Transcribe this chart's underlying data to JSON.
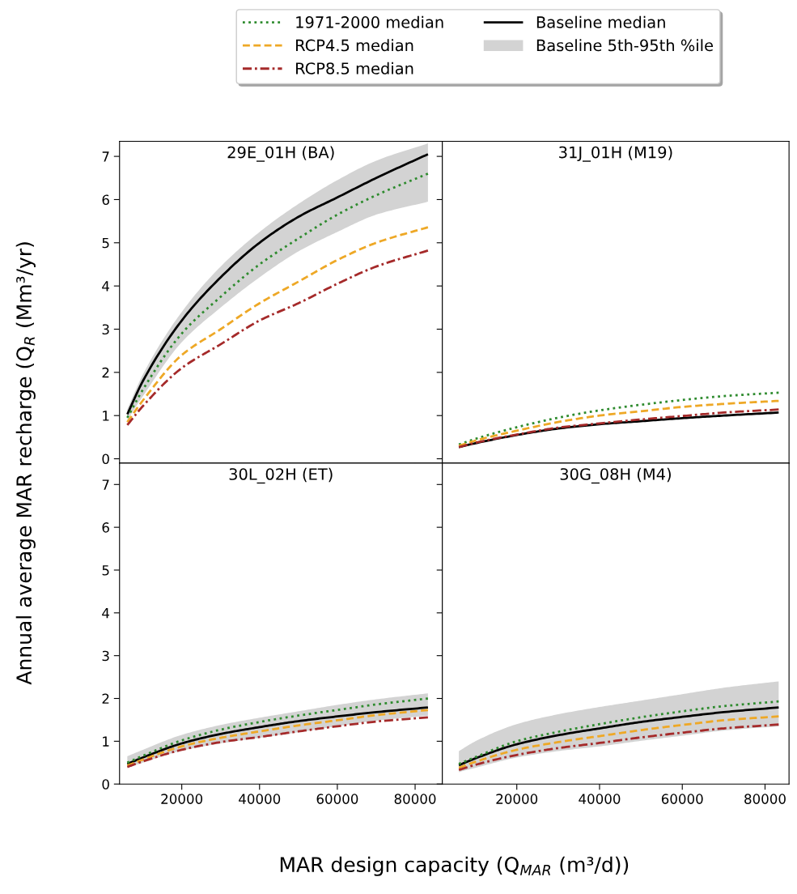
{
  "chart_data": [
    {
      "type": "line",
      "title": "29E_01H (BA)",
      "ylabel": "Annual average MAR recharge (Q$_{R}$ (Mm³/yr)",
      "legend": "top",
      "tick_labels": "y",
      "grid": false,
      "annotations": [
        "Baseline 5th-95th %ile"
      ],
      "x": [
        6000,
        10000,
        20000,
        30000,
        40000,
        50000,
        60000,
        70000,
        83300
      ],
      "xlim": [
        4000,
        87000
      ],
      "xticks": [
        20000,
        40000,
        60000,
        80000
      ],
      "ylim": [
        -0.1,
        7.35
      ],
      "yticks": [
        0,
        1,
        2,
        3,
        4,
        5,
        6,
        7
      ],
      "series": [
        {
          "name": "1971-2000 median",
          "color": "#2e8b2e",
          "line_style": "dotted",
          "values": [
            0.95,
            1.6,
            2.9,
            3.75,
            4.5,
            5.1,
            5.65,
            6.1,
            6.6
          ]
        },
        {
          "name": "RCP4.5 median",
          "color": "#eea826",
          "line_style": "dashed",
          "values": [
            0.85,
            1.35,
            2.4,
            3.0,
            3.6,
            4.1,
            4.6,
            5.0,
            5.36
          ]
        },
        {
          "name": "RCP8.5 median",
          "color": "#a52a2a",
          "line_style": "dashdot",
          "values": [
            0.78,
            1.22,
            2.1,
            2.65,
            3.2,
            3.6,
            4.05,
            4.45,
            4.82
          ]
        },
        {
          "name": "Baseline median",
          "color": "#000000",
          "line_style": "solid",
          "values": [
            1.03,
            1.8,
            3.2,
            4.2,
            5.0,
            5.6,
            6.05,
            6.5,
            7.05
          ],
          "lower": [
            0.9,
            1.45,
            2.7,
            3.5,
            4.2,
            4.8,
            5.25,
            5.65,
            5.95
          ],
          "upper": [
            1.15,
            1.95,
            3.4,
            4.45,
            5.25,
            5.9,
            6.45,
            6.9,
            7.3
          ]
        }
      ]
    },
    {
      "type": "line",
      "title": "31J_01H (M19)",
      "legend": "top",
      "tick_labels": false,
      "grid": false,
      "x": [
        6000,
        10000,
        20000,
        30000,
        40000,
        50000,
        60000,
        70000,
        83300
      ],
      "xlim": [
        2000,
        85800
      ],
      "xticks": [
        20000,
        40000,
        60000,
        80000
      ],
      "ylim": [
        -0.1,
        7.35
      ],
      "yticks": [
        0,
        1,
        2,
        3,
        4,
        5,
        6,
        7
      ],
      "series": [
        {
          "name": "1971-2000 median",
          "color": "#2e8b2e",
          "line_style": "dotted",
          "values": [
            0.33,
            0.46,
            0.73,
            0.95,
            1.12,
            1.25,
            1.36,
            1.45,
            1.53
          ]
        },
        {
          "name": "RCP4.5 median",
          "color": "#eea826",
          "line_style": "dashed",
          "values": [
            0.3,
            0.42,
            0.65,
            0.85,
            1.0,
            1.1,
            1.2,
            1.27,
            1.34
          ]
        },
        {
          "name": "RCP8.5 median",
          "color": "#a52a2a",
          "line_style": "dashdot",
          "values": [
            0.27,
            0.37,
            0.56,
            0.72,
            0.82,
            0.91,
            0.99,
            1.07,
            1.14
          ]
        },
        {
          "name": "Baseline median",
          "color": "#000000",
          "line_style": "solid",
          "values": [
            0.27,
            0.36,
            0.55,
            0.7,
            0.8,
            0.87,
            0.94,
            1.0,
            1.07
          ]
        }
      ]
    },
    {
      "type": "line",
      "title": "30L_02H (ET)",
      "xlabel": "MAR design capacity (Q$_{MAR}$ (m³/d))",
      "legend": "top",
      "grid": false,
      "x": [
        6000,
        10000,
        20000,
        30000,
        40000,
        50000,
        60000,
        70000,
        83300
      ],
      "xlim": [
        4000,
        87000
      ],
      "xticks": [
        20000,
        40000,
        60000,
        80000
      ],
      "ylim": [
        0,
        7.5
      ],
      "yticks": [
        0,
        1,
        2,
        3,
        4,
        5,
        6,
        7
      ],
      "series": [
        {
          "name": "1971-2000 median",
          "color": "#2e8b2e",
          "line_style": "dotted",
          "values": [
            0.5,
            0.66,
            1.02,
            1.27,
            1.45,
            1.6,
            1.73,
            1.86,
            2.0
          ]
        },
        {
          "name": "RCP4.5 median",
          "color": "#eea826",
          "line_style": "dashed",
          "values": [
            0.43,
            0.57,
            0.88,
            1.08,
            1.23,
            1.37,
            1.49,
            1.61,
            1.73
          ]
        },
        {
          "name": "RCP8.5 median",
          "color": "#a52a2a",
          "line_style": "dashdot",
          "values": [
            0.4,
            0.53,
            0.8,
            0.98,
            1.1,
            1.23,
            1.35,
            1.46,
            1.56
          ]
        },
        {
          "name": "Baseline median",
          "color": "#000000",
          "line_style": "solid",
          "values": [
            0.47,
            0.62,
            0.95,
            1.17,
            1.33,
            1.47,
            1.58,
            1.68,
            1.79
          ],
          "lower": [
            0.38,
            0.5,
            0.78,
            0.95,
            1.08,
            1.21,
            1.35,
            1.48,
            1.6
          ],
          "upper": [
            0.65,
            0.8,
            1.15,
            1.38,
            1.55,
            1.7,
            1.85,
            1.98,
            2.12
          ]
        }
      ]
    },
    {
      "type": "line",
      "title": "30G_08H (M4)",
      "legend": "top",
      "tick_labels": "x",
      "grid": false,
      "x": [
        6000,
        10000,
        20000,
        30000,
        40000,
        50000,
        60000,
        70000,
        83300
      ],
      "xlim": [
        2000,
        85800
      ],
      "xticks": [
        20000,
        40000,
        60000,
        80000
      ],
      "ylim": [
        0,
        7.5
      ],
      "yticks": [
        0,
        1,
        2,
        3,
        4,
        5,
        6,
        7
      ],
      "series": [
        {
          "name": "1971-2000 median",
          "color": "#2e8b2e",
          "line_style": "dotted",
          "values": [
            0.47,
            0.63,
            1.0,
            1.22,
            1.4,
            1.56,
            1.7,
            1.82,
            1.93
          ]
        },
        {
          "name": "RCP4.5 median",
          "color": "#eea826",
          "line_style": "dashed",
          "values": [
            0.38,
            0.52,
            0.8,
            0.98,
            1.12,
            1.26,
            1.38,
            1.49,
            1.58
          ]
        },
        {
          "name": "RCP8.5 median",
          "color": "#a52a2a",
          "line_style": "dashdot",
          "values": [
            0.33,
            0.45,
            0.68,
            0.84,
            0.96,
            1.09,
            1.2,
            1.3,
            1.39
          ]
        },
        {
          "name": "Baseline median",
          "color": "#000000",
          "line_style": "solid",
          "values": [
            0.44,
            0.6,
            0.93,
            1.14,
            1.3,
            1.45,
            1.57,
            1.68,
            1.79
          ],
          "lower": [
            0.28,
            0.38,
            0.62,
            0.77,
            0.88,
            1.01,
            1.13,
            1.25,
            1.35
          ],
          "upper": [
            0.77,
            1.0,
            1.4,
            1.63,
            1.8,
            1.95,
            2.1,
            2.25,
            2.4
          ]
        }
      ]
    }
  ]
}
